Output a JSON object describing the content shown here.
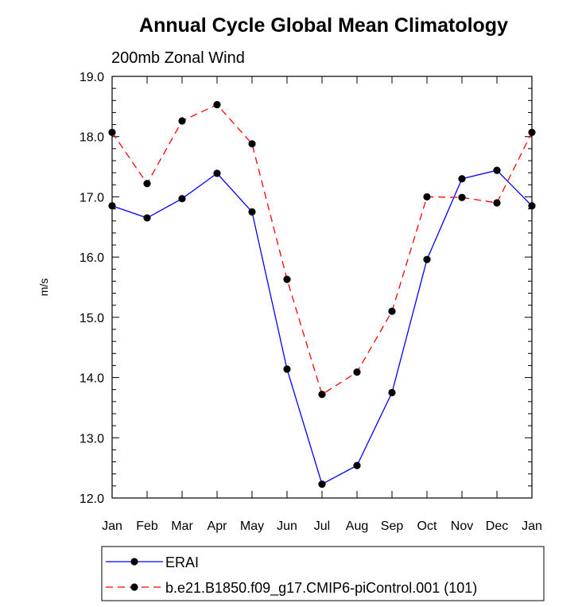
{
  "chart_data": {
    "type": "line",
    "title": "Annual Cycle Global Mean Climatology",
    "subtitle": "200mb Zonal Wind",
    "xlabel": "",
    "ylabel": "m/s",
    "categories": [
      "Jan",
      "Feb",
      "Mar",
      "Apr",
      "May",
      "Jun",
      "Jul",
      "Aug",
      "Sep",
      "Oct",
      "Nov",
      "Dec",
      "Jan"
    ],
    "ylim": [
      12.0,
      19.0
    ],
    "yticks": [
      "12.0",
      "13.0",
      "14.0",
      "15.0",
      "16.0",
      "17.0",
      "18.0",
      "19.0"
    ],
    "grid": false,
    "legend_position": "bottom",
    "series": [
      {
        "name": "ERAI",
        "color": "#0000ff",
        "line_style": "solid",
        "values": [
          16.85,
          16.65,
          16.97,
          17.39,
          16.75,
          14.14,
          12.23,
          12.54,
          13.75,
          15.96,
          17.3,
          17.44,
          16.85
        ]
      },
      {
        "name": "b.e21.B1850.f09_g17.CMIP6-piControl.001 (101)",
        "color": "#ff0000",
        "line_style": "dashed",
        "values": [
          18.07,
          17.22,
          18.26,
          18.53,
          17.88,
          15.63,
          13.72,
          14.09,
          15.1,
          17.0,
          16.99,
          16.9,
          18.07
        ]
      }
    ]
  }
}
